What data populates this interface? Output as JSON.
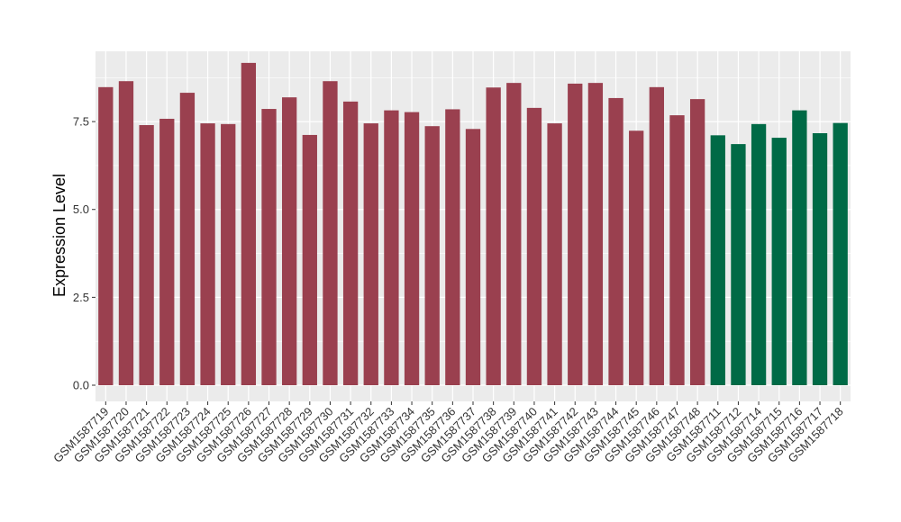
{
  "chart_data": {
    "type": "bar",
    "title": "",
    "xlabel": "",
    "ylabel": "Expression Level",
    "ylim": [
      0,
      9.5
    ],
    "yticks": [
      0.0,
      2.5,
      5.0,
      7.5
    ],
    "ytick_labels": [
      "0.0",
      "2.5",
      "5.0",
      "7.5"
    ],
    "grid": true,
    "legend": "none",
    "colors": {
      "group_a": "#9a404f",
      "group_b": "#006a46",
      "panel_bg": "#ebebeb",
      "grid": "#ffffff"
    },
    "categories": [
      "GSM1587719",
      "GSM1587720",
      "GSM1587721",
      "GSM1587722",
      "GSM1587723",
      "GSM1587724",
      "GSM1587725",
      "GSM1587726",
      "GSM1587727",
      "GSM1587728",
      "GSM1587729",
      "GSM1587730",
      "GSM1587731",
      "GSM1587732",
      "GSM1587733",
      "GSM1587734",
      "GSM1587735",
      "GSM1587736",
      "GSM1587737",
      "GSM1587738",
      "GSM1587739",
      "GSM1587740",
      "GSM1587741",
      "GSM1587742",
      "GSM1587743",
      "GSM1587744",
      "GSM1587745",
      "GSM1587746",
      "GSM1587747",
      "GSM1587748",
      "GSM1587711",
      "GSM1587712",
      "GSM1587714",
      "GSM1587715",
      "GSM1587716",
      "GSM1587717",
      "GSM1587718"
    ],
    "values": [
      8.48,
      8.65,
      7.4,
      7.58,
      8.32,
      7.45,
      7.43,
      9.17,
      7.86,
      8.19,
      7.12,
      8.65,
      8.07,
      7.45,
      7.82,
      7.77,
      7.37,
      7.85,
      7.29,
      8.47,
      8.6,
      7.89,
      7.45,
      8.58,
      8.6,
      8.17,
      7.24,
      8.48,
      7.68,
      8.14,
      7.11,
      6.86,
      7.43,
      7.04,
      7.82,
      7.17,
      7.46
    ],
    "groups": [
      "a",
      "a",
      "a",
      "a",
      "a",
      "a",
      "a",
      "a",
      "a",
      "a",
      "a",
      "a",
      "a",
      "a",
      "a",
      "a",
      "a",
      "a",
      "a",
      "a",
      "a",
      "a",
      "a",
      "a",
      "a",
      "a",
      "a",
      "a",
      "a",
      "a",
      "b",
      "b",
      "b",
      "b",
      "b",
      "b",
      "b"
    ]
  }
}
